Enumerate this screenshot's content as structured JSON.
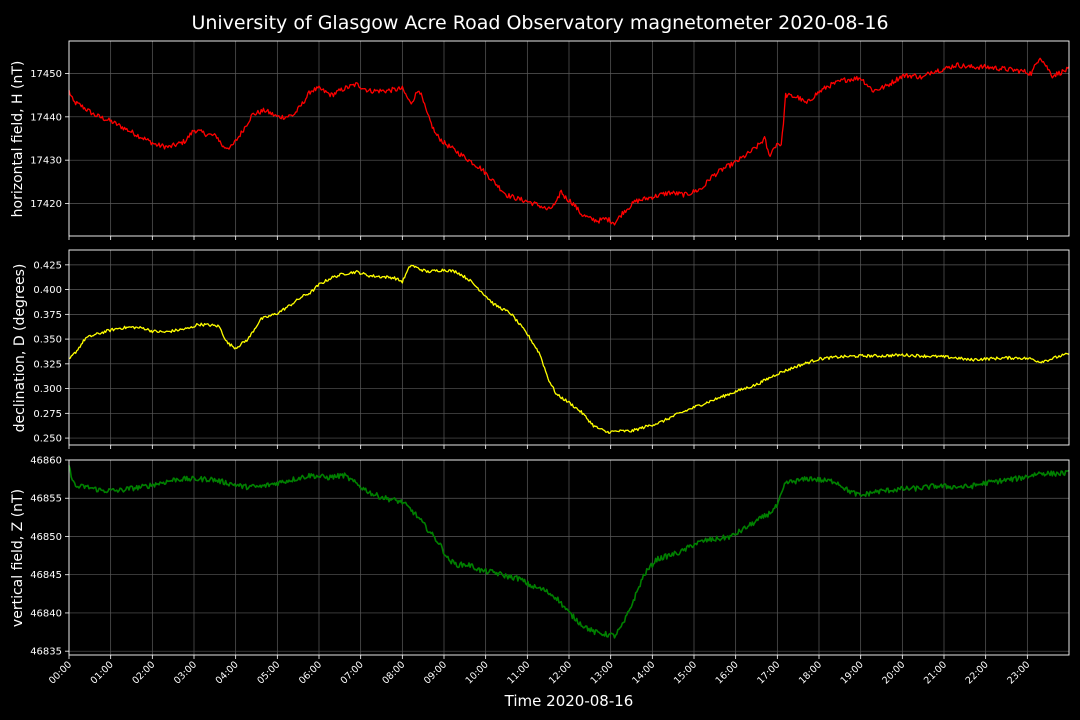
{
  "chart_data": {
    "type": "line",
    "title": "University of Glasgow Acre Road Observatory magnetometer 2020-08-16",
    "xlabel": "Time 2020-08-16",
    "x_ticks": [
      "00:00",
      "01:00",
      "02:00",
      "03:00",
      "04:00",
      "05:00",
      "06:00",
      "07:00",
      "08:00",
      "09:00",
      "10:00",
      "11:00",
      "12:00",
      "13:00",
      "14:00",
      "15:00",
      "16:00",
      "17:00",
      "18:00",
      "19:00",
      "20:00",
      "21:00",
      "22:00",
      "23:00"
    ],
    "xlim_hours": [
      0,
      24
    ],
    "grid": true,
    "panels": [
      {
        "ylabel": "horizontal field, H (nT)",
        "color": "#ff0000",
        "ylim": [
          17412.5,
          17457.5
        ],
        "yticks": [
          17420,
          17430,
          17440,
          17450
        ],
        "ytick_labels": [
          "17420",
          "17430",
          "17440",
          "17450"
        ],
        "noise": 0.6,
        "series": {
          "name": "H",
          "x": [
            0,
            0.1,
            0.3,
            0.6,
            1.0,
            1.4,
            1.8,
            2.1,
            2.4,
            2.7,
            2.8,
            3.0,
            3.3,
            3.55,
            3.7,
            3.9,
            4.15,
            4.4,
            4.7,
            5.0,
            5.2,
            5.4,
            5.6,
            5.8,
            6.0,
            6.3,
            6.6,
            6.9,
            7.2,
            7.6,
            8.0,
            8.2,
            8.4,
            8.6,
            8.8,
            9.0,
            9.3,
            9.6,
            9.9,
            10.2,
            10.5,
            10.8,
            11.0,
            11.3,
            11.5,
            11.7,
            11.8,
            11.9,
            12.1,
            12.3,
            12.5,
            12.7,
            12.9,
            13.1,
            13.3,
            13.6,
            14.0,
            14.4,
            14.8,
            15.2,
            15.4,
            15.7,
            16.0,
            16.3,
            16.5,
            16.7,
            16.8,
            17.0,
            17.1,
            17.2,
            17.5,
            17.7,
            17.9,
            18.2,
            18.6,
            19.0,
            19.3,
            19.6,
            20.0,
            20.3,
            20.5,
            20.7,
            21.0,
            21.3,
            21.6,
            22.0,
            22.5,
            22.9,
            23.1,
            23.3,
            23.6,
            24.0
          ],
          "y": [
            17446,
            17443.5,
            17442.5,
            17440.5,
            17439,
            17437,
            17435,
            17433.5,
            17433,
            17434,
            17434.5,
            17437,
            17436,
            17435.5,
            17433,
            17433,
            17436.5,
            17440.5,
            17441.5,
            17440,
            17440,
            17440.5,
            17443,
            17446,
            17446.5,
            17445,
            17446.5,
            17447.5,
            17446,
            17446,
            17446.5,
            17443,
            17446.5,
            17440.5,
            17436,
            17434,
            17432,
            17430,
            17428,
            17425,
            17422,
            17421,
            17420.5,
            17419.5,
            17418.5,
            17420,
            17423,
            17421.5,
            17420,
            17417.5,
            17416.5,
            17416,
            17416.5,
            17415.5,
            17418,
            17420.5,
            17421.5,
            17422.5,
            17422,
            17423.5,
            17426,
            17428,
            17429.5,
            17431.5,
            17433,
            17435,
            17431,
            17434,
            17433.5,
            17445,
            17444.5,
            17443,
            17445,
            17447,
            17448.5,
            17449,
            17446,
            17447,
            17449.5,
            17449.5,
            17449,
            17450.5,
            17451,
            17452,
            17451.5,
            17451.5,
            17451,
            17450.5,
            17450,
            17454,
            17449.5,
            17451
          ]
        }
      },
      {
        "ylabel": "declination, D (degrees)",
        "color": "#ffff00",
        "ylim": [
          0.243,
          0.44
        ],
        "yticks": [
          0.25,
          0.275,
          0.3,
          0.325,
          0.35,
          0.375,
          0.4,
          0.425
        ],
        "ytick_labels": [
          "0.250",
          "0.275",
          "0.300",
          "0.325",
          "0.350",
          "0.375",
          "0.400",
          "0.425"
        ],
        "noise": 0.0015,
        "series": {
          "name": "D",
          "x": [
            0,
            0.2,
            0.4,
            0.6,
            0.9,
            1.2,
            1.5,
            1.8,
            2.0,
            2.3,
            2.6,
            2.9,
            3.1,
            3.4,
            3.6,
            3.8,
            4.0,
            4.3,
            4.6,
            5.0,
            5.3,
            5.6,
            5.8,
            6.0,
            6.3,
            6.6,
            6.9,
            7.2,
            7.5,
            7.8,
            8.0,
            8.2,
            8.4,
            8.6,
            9.0,
            9.3,
            9.6,
            9.9,
            10.2,
            10.6,
            11.0,
            11.3,
            11.5,
            11.7,
            12.0,
            12.3,
            12.6,
            12.9,
            13.2,
            13.5,
            13.8,
            14.2,
            14.6,
            15.0,
            15.5,
            16.0,
            16.5,
            17.0,
            17.5,
            18.0,
            18.5,
            19.0,
            19.5,
            20.0,
            20.5,
            21.0,
            21.3,
            21.6,
            22.0,
            22.5,
            22.8,
            23.1,
            23.3,
            23.5,
            23.8,
            24.0
          ],
          "y": [
            0.329,
            0.339,
            0.351,
            0.354,
            0.358,
            0.361,
            0.362,
            0.361,
            0.358,
            0.357,
            0.359,
            0.361,
            0.365,
            0.364,
            0.363,
            0.346,
            0.341,
            0.35,
            0.37,
            0.376,
            0.384,
            0.393,
            0.397,
            0.405,
            0.412,
            0.416,
            0.418,
            0.414,
            0.413,
            0.412,
            0.408,
            0.425,
            0.421,
            0.418,
            0.42,
            0.418,
            0.41,
            0.398,
            0.385,
            0.376,
            0.355,
            0.335,
            0.31,
            0.294,
            0.286,
            0.276,
            0.262,
            0.256,
            0.257,
            0.257,
            0.261,
            0.266,
            0.274,
            0.281,
            0.289,
            0.297,
            0.304,
            0.315,
            0.323,
            0.33,
            0.332,
            0.333,
            0.333,
            0.334,
            0.333,
            0.332,
            0.331,
            0.329,
            0.33,
            0.331,
            0.331,
            0.33,
            0.327,
            0.329,
            0.333,
            0.335
          ]
        }
      },
      {
        "ylabel": "vertical field, Z (nT)",
        "color": "#008000",
        "ylim": [
          46834.5,
          46860
        ],
        "yticks": [
          46835,
          46840,
          46845,
          46850,
          46855,
          46860
        ],
        "ytick_labels": [
          "46835",
          "46840",
          "46845",
          "46850",
          "46855",
          "46860"
        ],
        "noise": 0.35,
        "series": {
          "name": "Z",
          "x": [
            0,
            0.15,
            0.4,
            0.8,
            1.2,
            1.5,
            1.8,
            2.2,
            2.6,
            3.0,
            3.4,
            3.8,
            4.2,
            4.6,
            5.0,
            5.4,
            5.8,
            6.2,
            6.6,
            7.0,
            7.3,
            7.6,
            8.0,
            8.3,
            8.6,
            8.9,
            9.1,
            9.3,
            9.6,
            9.9,
            10.2,
            10.5,
            10.8,
            11.1,
            11.4,
            11.7,
            12.0,
            12.3,
            12.6,
            12.9,
            13.1,
            13.3,
            13.5,
            13.8,
            14.1,
            14.4,
            14.7,
            15.0,
            15.3,
            15.6,
            15.9,
            16.2,
            16.5,
            16.8,
            17.0,
            17.2,
            17.5,
            17.8,
            18.1,
            18.4,
            18.7,
            19.0,
            19.3,
            19.6,
            20.0,
            20.4,
            20.8,
            21.2,
            21.6,
            22.0,
            22.4,
            22.8,
            23.1,
            23.3,
            23.6,
            24.0
          ],
          "y": [
            46859,
            46856.5,
            46856.5,
            46856,
            46856,
            46856.3,
            46856.5,
            46857,
            46857.5,
            46857.5,
            46857.5,
            46857,
            46856.5,
            46856.5,
            46857,
            46857.5,
            46858,
            46857.7,
            46858,
            46856.5,
            46855.5,
            46855,
            46854.5,
            46853,
            46851,
            46849,
            46847,
            46846.3,
            46846.3,
            46845.5,
            46845.3,
            46844.8,
            46844.5,
            46843.5,
            46843,
            46842,
            46840,
            46838.5,
            46837.5,
            46837.2,
            46837,
            46838.5,
            46841,
            46845,
            46847,
            46847.5,
            46848,
            46849,
            46849.5,
            46849.7,
            46850,
            46851,
            46852,
            46853,
            46854,
            46857,
            46857.3,
            46857.6,
            46857.3,
            46857.2,
            46856,
            46855.3,
            46855.8,
            46856,
            46856.2,
            46856.3,
            46856.6,
            46856.5,
            46856.5,
            46857,
            46857.3,
            46857.6,
            46858,
            46858.3,
            46858.2,
            46858.3
          ]
        }
      }
    ]
  }
}
